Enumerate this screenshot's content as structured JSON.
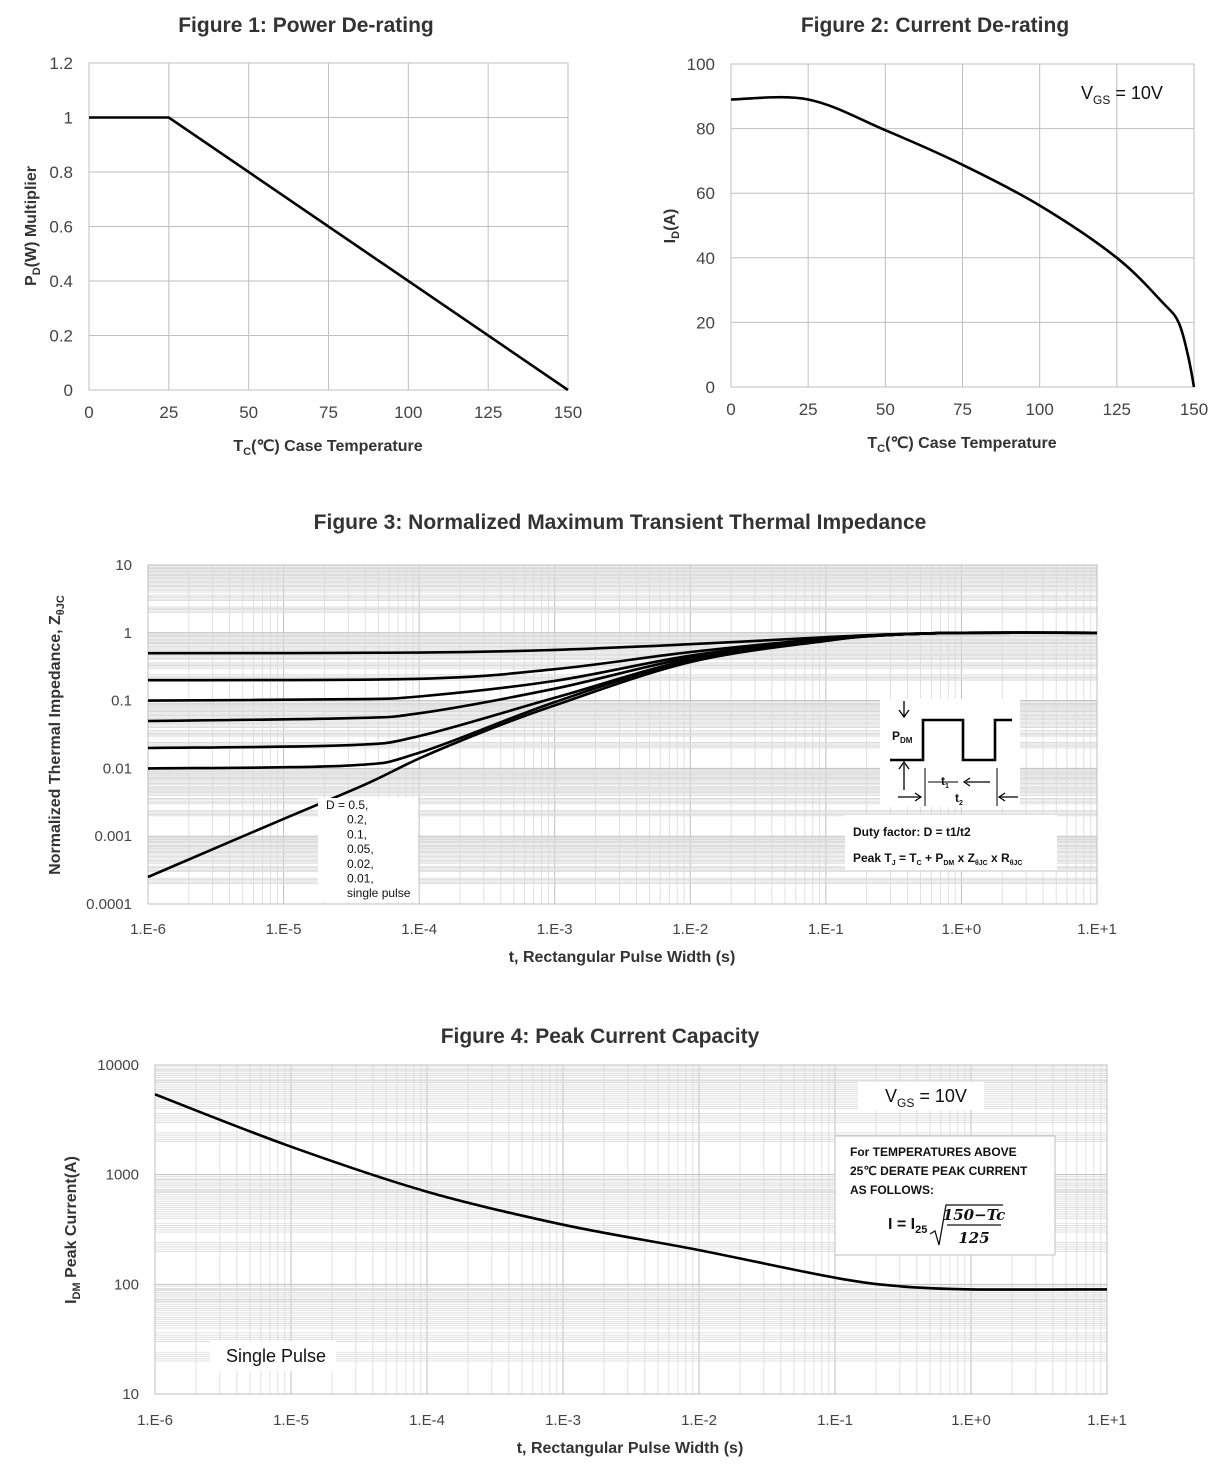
{
  "chart_data": [
    {
      "type": "line",
      "title": "Figure 1: Power De-rating",
      "xlabel": "TC(℃) Case Temperature",
      "xlabel_main": "T",
      "xlabel_sub": "C",
      "xlabel_rest": "(℃) Case Temperature",
      "ylabel": "PD(W) Multiplier",
      "ylabel_main": "P",
      "ylabel_sub": "D",
      "ylabel_rest": "(W) Multiplier",
      "xlim": [
        0,
        150
      ],
      "ylim": [
        0,
        1.2
      ],
      "x_ticks": [
        0,
        25,
        50,
        75,
        100,
        125,
        150
      ],
      "y_ticks": [
        "0",
        "0.2",
        "0.4",
        "0.6",
        "0.8",
        "1",
        "1.2"
      ],
      "series": [
        {
          "name": "PD multiplier",
          "x": [
            0,
            25,
            150
          ],
          "y": [
            1,
            1,
            0
          ]
        }
      ]
    },
    {
      "type": "line",
      "title": "Figure 2: Current De-rating",
      "xlabel": "TC(℃) Case Temperature",
      "xlabel_main": "T",
      "xlabel_sub": "C",
      "xlabel_rest": "(℃) Case Temperature",
      "ylabel": "ID(A)",
      "ylabel_main": "I",
      "ylabel_sub": "D",
      "ylabel_rest": "(A)",
      "xlim": [
        0,
        150
      ],
      "ylim": [
        0,
        100
      ],
      "x_ticks": [
        0,
        25,
        50,
        75,
        100,
        125,
        150
      ],
      "y_ticks": [
        "0",
        "20",
        "40",
        "60",
        "80",
        "100"
      ],
      "annotation": {
        "main": "V",
        "sub": "GS",
        "rest": " = 10V"
      },
      "series": [
        {
          "name": "ID",
          "x": [
            0,
            25,
            50,
            75,
            100,
            125,
            140,
            145,
            148,
            150
          ],
          "y": [
            89,
            89,
            79.5,
            68.8,
            56.2,
            40.0,
            26.0,
            20.0,
            10.0,
            0
          ]
        }
      ]
    },
    {
      "type": "line",
      "title": "Figure 3: Normalized Maximum Transient Thermal Impedance",
      "xlabel": "t, Rectangular Pulse Width (s)",
      "ylabel": "Normalized Thermal Impedance, ZθJC",
      "ylabel_main": "Normalized Thermal Impedance, Z",
      "ylabel_sub": "θJC",
      "x_scale": "log",
      "y_scale": "log",
      "xlim": [
        1e-06,
        10
      ],
      "ylim": [
        0.0001,
        10
      ],
      "x_ticks": [
        "1.E-6",
        "1.E-5",
        "1.E-4",
        "1.E-3",
        "1.E-2",
        "1.E-1",
        "1.E+0",
        "1.E+1"
      ],
      "y_ticks": [
        "0.0001",
        "0.001",
        "0.01",
        "0.1",
        "1",
        "10"
      ],
      "legend_lines": [
        "D = 0.5,",
        "0.2,",
        "0.1,",
        "0.05,",
        "0.02,",
        "0.01,",
        "single pulse"
      ],
      "inset": {
        "pdm_main": "P",
        "pdm_sub": "DM",
        "t1_main": "t",
        "t1_sub": "1",
        "t2_main": "t",
        "t2_sub": "2",
        "duty": "Duty factor: D = t1/t2",
        "peak_prefix": "Peak T",
        "peak_sub_j": "J",
        "peak_eq": " = T",
        "peak_sub_c": "C",
        "peak_plus": " + P",
        "peak_sub_dm": "DM",
        "peak_x": " x Z",
        "peak_sub_zjc": "θJC",
        "peak_x2": " x R",
        "peak_sub_rjc": "θJC"
      },
      "series": [
        {
          "name": "D=0.5",
          "points": [
            [
              1e-06,
              0.5
            ],
            [
              0.0001,
              0.51
            ],
            [
              0.001,
              0.56
            ],
            [
              0.01,
              0.68
            ],
            [
              0.1,
              0.86
            ],
            [
              0.3,
              0.95
            ],
            [
              1,
              1.0
            ],
            [
              10,
              1.0
            ]
          ]
        },
        {
          "name": "D=0.2",
          "points": [
            [
              1e-06,
              0.2
            ],
            [
              0.0001,
              0.21
            ],
            [
              0.001,
              0.29
            ],
            [
              0.01,
              0.52
            ],
            [
              0.1,
              0.82
            ],
            [
              0.3,
              0.94
            ],
            [
              1,
              1.0
            ],
            [
              10,
              1.0
            ]
          ]
        },
        {
          "name": "D=0.1",
          "points": [
            [
              1e-06,
              0.1
            ],
            [
              3e-05,
              0.105
            ],
            [
              0.0001,
              0.115
            ],
            [
              0.001,
              0.195
            ],
            [
              0.01,
              0.46
            ],
            [
              0.1,
              0.8
            ],
            [
              0.3,
              0.93
            ],
            [
              1,
              1.0
            ],
            [
              10,
              1.0
            ]
          ]
        },
        {
          "name": "D=0.05",
          "points": [
            [
              1e-06,
              0.05
            ],
            [
              3e-05,
              0.055
            ],
            [
              0.0001,
              0.065
            ],
            [
              0.001,
              0.15
            ],
            [
              0.01,
              0.43
            ],
            [
              0.1,
              0.79
            ],
            [
              0.3,
              0.93
            ],
            [
              1,
              1.0
            ],
            [
              10,
              1.0
            ]
          ]
        },
        {
          "name": "D=0.02",
          "points": [
            [
              1e-06,
              0.02
            ],
            [
              3e-05,
              0.022
            ],
            [
              0.0001,
              0.03
            ],
            [
              0.001,
              0.11
            ],
            [
              0.01,
              0.4
            ],
            [
              0.1,
              0.78
            ],
            [
              0.3,
              0.93
            ],
            [
              1,
              1.0
            ],
            [
              10,
              1.0
            ]
          ]
        },
        {
          "name": "D=0.01",
          "points": [
            [
              1e-06,
              0.01
            ],
            [
              3e-05,
              0.011
            ],
            [
              0.0001,
              0.017
            ],
            [
              0.001,
              0.095
            ],
            [
              0.01,
              0.39
            ],
            [
              0.1,
              0.77
            ],
            [
              0.3,
              0.93
            ],
            [
              1,
              1.0
            ],
            [
              10,
              1.0
            ]
          ]
        },
        {
          "name": "single pulse",
          "points": [
            [
              1e-06,
              0.00025
            ],
            [
              1e-05,
              0.0018
            ],
            [
              4e-05,
              0.0058
            ],
            [
              0.0001,
              0.014
            ],
            [
              0.0003,
              0.035
            ],
            [
              0.001,
              0.085
            ],
            [
              0.01,
              0.37
            ],
            [
              0.1,
              0.76
            ],
            [
              0.3,
              0.93
            ],
            [
              1,
              1.0
            ],
            [
              10,
              1.0
            ]
          ]
        }
      ]
    },
    {
      "type": "line",
      "title": "Figure 4: Peak Current Capacity",
      "xlabel": "t, Rectangular Pulse Width (s)",
      "ylabel": "IDM Peak Current(A)",
      "ylabel_main": "I",
      "ylabel_sub": "DM",
      "ylabel_rest": " Peak Current(A)",
      "x_scale": "log",
      "y_scale": "log",
      "xlim": [
        1e-06,
        10
      ],
      "ylim": [
        10,
        10000
      ],
      "x_ticks": [
        "1.E-6",
        "1.E-5",
        "1.E-4",
        "1.E-3",
        "1.E-2",
        "1.E-1",
        "1.E+0",
        "1.E+1"
      ],
      "y_ticks": [
        "10",
        "100",
        "1000",
        "10000"
      ],
      "annotation": {
        "main": "V",
        "sub": "GS",
        "rest": " = 10V"
      },
      "single_pulse_label": "Single Pulse",
      "note": {
        "line1": "For TEMPERATURES ABOVE",
        "line2": "25℃ DERATE PEAK CURRENT",
        "line3": "AS FOLLOWS:",
        "formula_prefix": "I = I",
        "formula_sub": "25",
        "numerator": "150−Tc",
        "denominator": "125"
      },
      "series": [
        {
          "name": "IDM",
          "points": [
            [
              1e-06,
              5400
            ],
            [
              1e-05,
              1800
            ],
            [
              0.0001,
              700
            ],
            [
              0.001,
              350
            ],
            [
              0.01,
              205
            ],
            [
              0.1,
              115
            ],
            [
              0.3,
              96
            ],
            [
              1,
              90
            ],
            [
              10,
              90
            ]
          ]
        }
      ]
    }
  ]
}
